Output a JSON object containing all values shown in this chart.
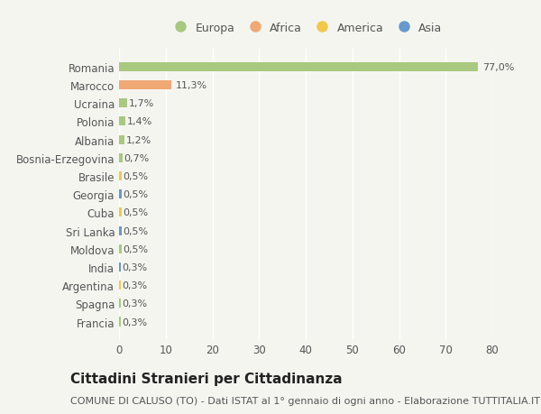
{
  "categories": [
    "Francia",
    "Spagna",
    "Argentina",
    "India",
    "Moldova",
    "Sri Lanka",
    "Cuba",
    "Georgia",
    "Brasile",
    "Bosnia-Erzegovina",
    "Albania",
    "Polonia",
    "Ucraina",
    "Marocco",
    "Romania"
  ],
  "values": [
    0.3,
    0.3,
    0.3,
    0.3,
    0.5,
    0.5,
    0.5,
    0.5,
    0.5,
    0.7,
    1.2,
    1.4,
    1.7,
    11.3,
    77.0
  ],
  "labels": [
    "0,3%",
    "0,3%",
    "0,3%",
    "0,3%",
    "0,5%",
    "0,5%",
    "0,5%",
    "0,5%",
    "0,5%",
    "0,7%",
    "1,2%",
    "1,4%",
    "1,7%",
    "11,3%",
    "77,0%"
  ],
  "continent": [
    "Europa",
    "Europa",
    "America",
    "Asia",
    "Europa",
    "Asia",
    "America",
    "Asia",
    "America",
    "Europa",
    "Europa",
    "Europa",
    "Europa",
    "Africa",
    "Europa"
  ],
  "legend_labels": [
    "Europa",
    "Africa",
    "America",
    "Asia"
  ],
  "legend_colors": [
    "#a8c97f",
    "#f0a875",
    "#f0c84a",
    "#6699cc"
  ],
  "continent_color_map": {
    "Europa": "#a8c97f",
    "Africa": "#f0a875",
    "America": "#f0c84a",
    "Asia": "#6699cc"
  },
  "title": "Cittadini Stranieri per Cittadinanza",
  "subtitle": "COMUNE DI CALUSO (TO) - Dati ISTAT al 1° gennaio di ogni anno - Elaborazione TUTTITALIA.IT",
  "xlim": [
    0,
    80
  ],
  "xticks": [
    0,
    10,
    20,
    30,
    40,
    50,
    60,
    70,
    80
  ],
  "bg_color": "#f5f5f0",
  "bar_height": 0.5,
  "title_fontsize": 11,
  "subtitle_fontsize": 8,
  "label_fontsize": 8,
  "tick_fontsize": 8.5,
  "legend_fontsize": 9
}
